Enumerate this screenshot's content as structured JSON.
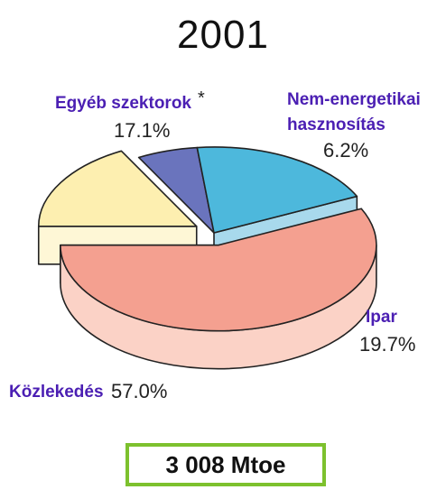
{
  "chart_data": {
    "type": "pie",
    "title": "2001",
    "total": "3 008 Mtoe",
    "slices": [
      {
        "label": "Közlekedés",
        "value": 57.0,
        "value_label": "57.0%",
        "top_color": "#f4a090",
        "side_color": "#fbd2c6",
        "exploded": true
      },
      {
        "label": "Egyéb szektorok",
        "value": 17.1,
        "value_label": "17.1%",
        "marker": "*",
        "top_color": "#fdefb0",
        "side_color": "#fef7d6",
        "exploded": true
      },
      {
        "label": "Nem-energetikai hasznosítás",
        "value": 6.2,
        "value_label": "6.2%",
        "top_color": "#6a74bd",
        "side_color": "#8d95cf",
        "exploded": false
      },
      {
        "label": "Ipar",
        "value": 19.7,
        "value_label": "19.7%",
        "top_color": "#4db8dc",
        "side_color": "#a8d9ec",
        "exploded": false
      }
    ]
  },
  "labels": {
    "nonenergy_line1": "Nem-energetikai",
    "nonenergy_line2": "hasznosítás"
  },
  "colors": {
    "label_text": "#4b1fb3",
    "outline": "#222222",
    "total_border": "#7dc12e"
  }
}
